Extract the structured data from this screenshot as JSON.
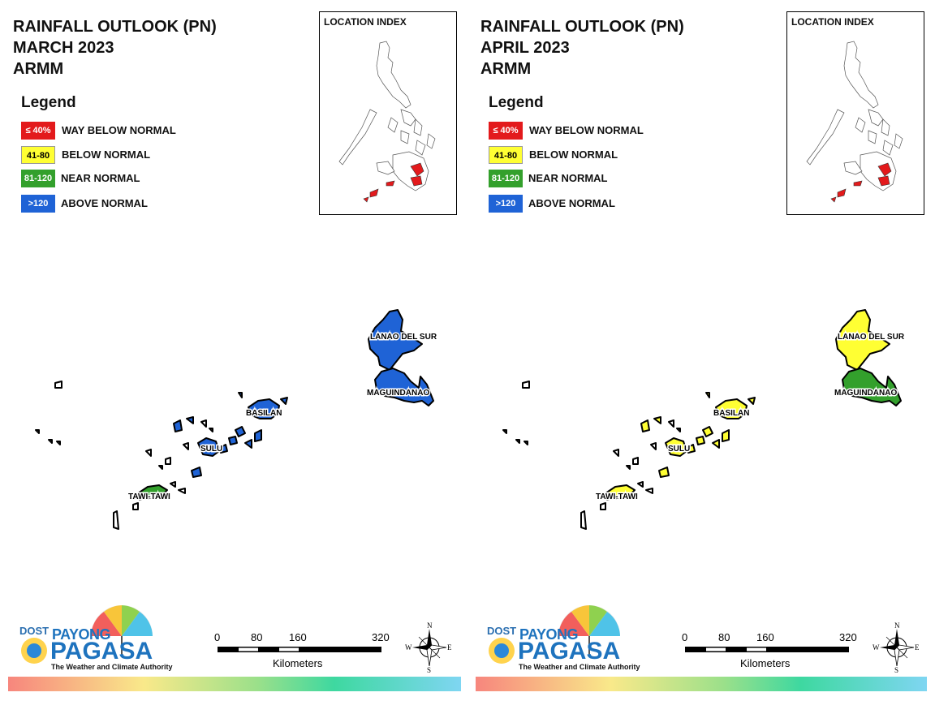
{
  "legend_classes": [
    {
      "range": "≤ 40%",
      "label": "WAY BELOW NORMAL",
      "color": "#e31a1c"
    },
    {
      "range": "41-80",
      "label": "BELOW NORMAL",
      "color": "#ffff33"
    },
    {
      "range": "81-120",
      "label": "NEAR NORMAL",
      "color": "#33a02c"
    },
    {
      "range": ">120",
      "label": "ABOVE NORMAL",
      "color": "#1f63d6"
    }
  ],
  "panels": [
    {
      "title_line1": "RAINFALL OUTLOOK (PN)",
      "title_line2": "MARCH 2023",
      "title_line3": "ARMM",
      "legend_title": "Legend",
      "index_title": "LOCATION INDEX",
      "provinces": {
        "lanao_del_sur": {
          "label": "LANAO DEL SUR",
          "color": "#1f63d6"
        },
        "maguindanao": {
          "label": "MAGUINDANAO",
          "color": "#1f63d6"
        },
        "basilan": {
          "label": "BASILAN",
          "color": "#1f63d6"
        },
        "sulu": {
          "label": "SULU",
          "color": "#1f63d6"
        },
        "tawi_tawi": {
          "label": "TAWI-TAWI",
          "color": "#33a02c"
        }
      },
      "scale": {
        "ticks": [
          "0",
          "80",
          "160",
          "320"
        ],
        "unit": "Kilometers"
      },
      "compass": {
        "n": "N",
        "s": "S",
        "e": "E",
        "w": "W"
      },
      "logo": {
        "dost": "DOST",
        "payong": "PAYONG",
        "pagasa": "PAGASA",
        "tagline": "The Weather and Climate Authority"
      }
    },
    {
      "title_line1": "RAINFALL OUTLOOK (PN)",
      "title_line2": "APRIL 2023",
      "title_line3": "ARMM",
      "legend_title": "Legend",
      "index_title": "LOCATION INDEX",
      "provinces": {
        "lanao_del_sur": {
          "label": "LANAO DEL SUR",
          "color": "#ffff33"
        },
        "maguindanao": {
          "label": "MAGUINDANAO",
          "color": "#33a02c"
        },
        "basilan": {
          "label": "BASILAN",
          "color": "#ffff33"
        },
        "sulu": {
          "label": "SULU",
          "color": "#ffff33"
        },
        "tawi_tawi": {
          "label": "TAWI-TAWI",
          "color": "#ffff33"
        }
      },
      "scale": {
        "ticks": [
          "0",
          "80",
          "160",
          "320"
        ],
        "unit": "Kilometers"
      },
      "compass": {
        "n": "N",
        "s": "S",
        "e": "E",
        "w": "W"
      },
      "logo": {
        "dost": "DOST",
        "payong": "PAYONG",
        "pagasa": "PAGASA",
        "tagline": "The Weather and Climate Authority"
      }
    }
  ]
}
